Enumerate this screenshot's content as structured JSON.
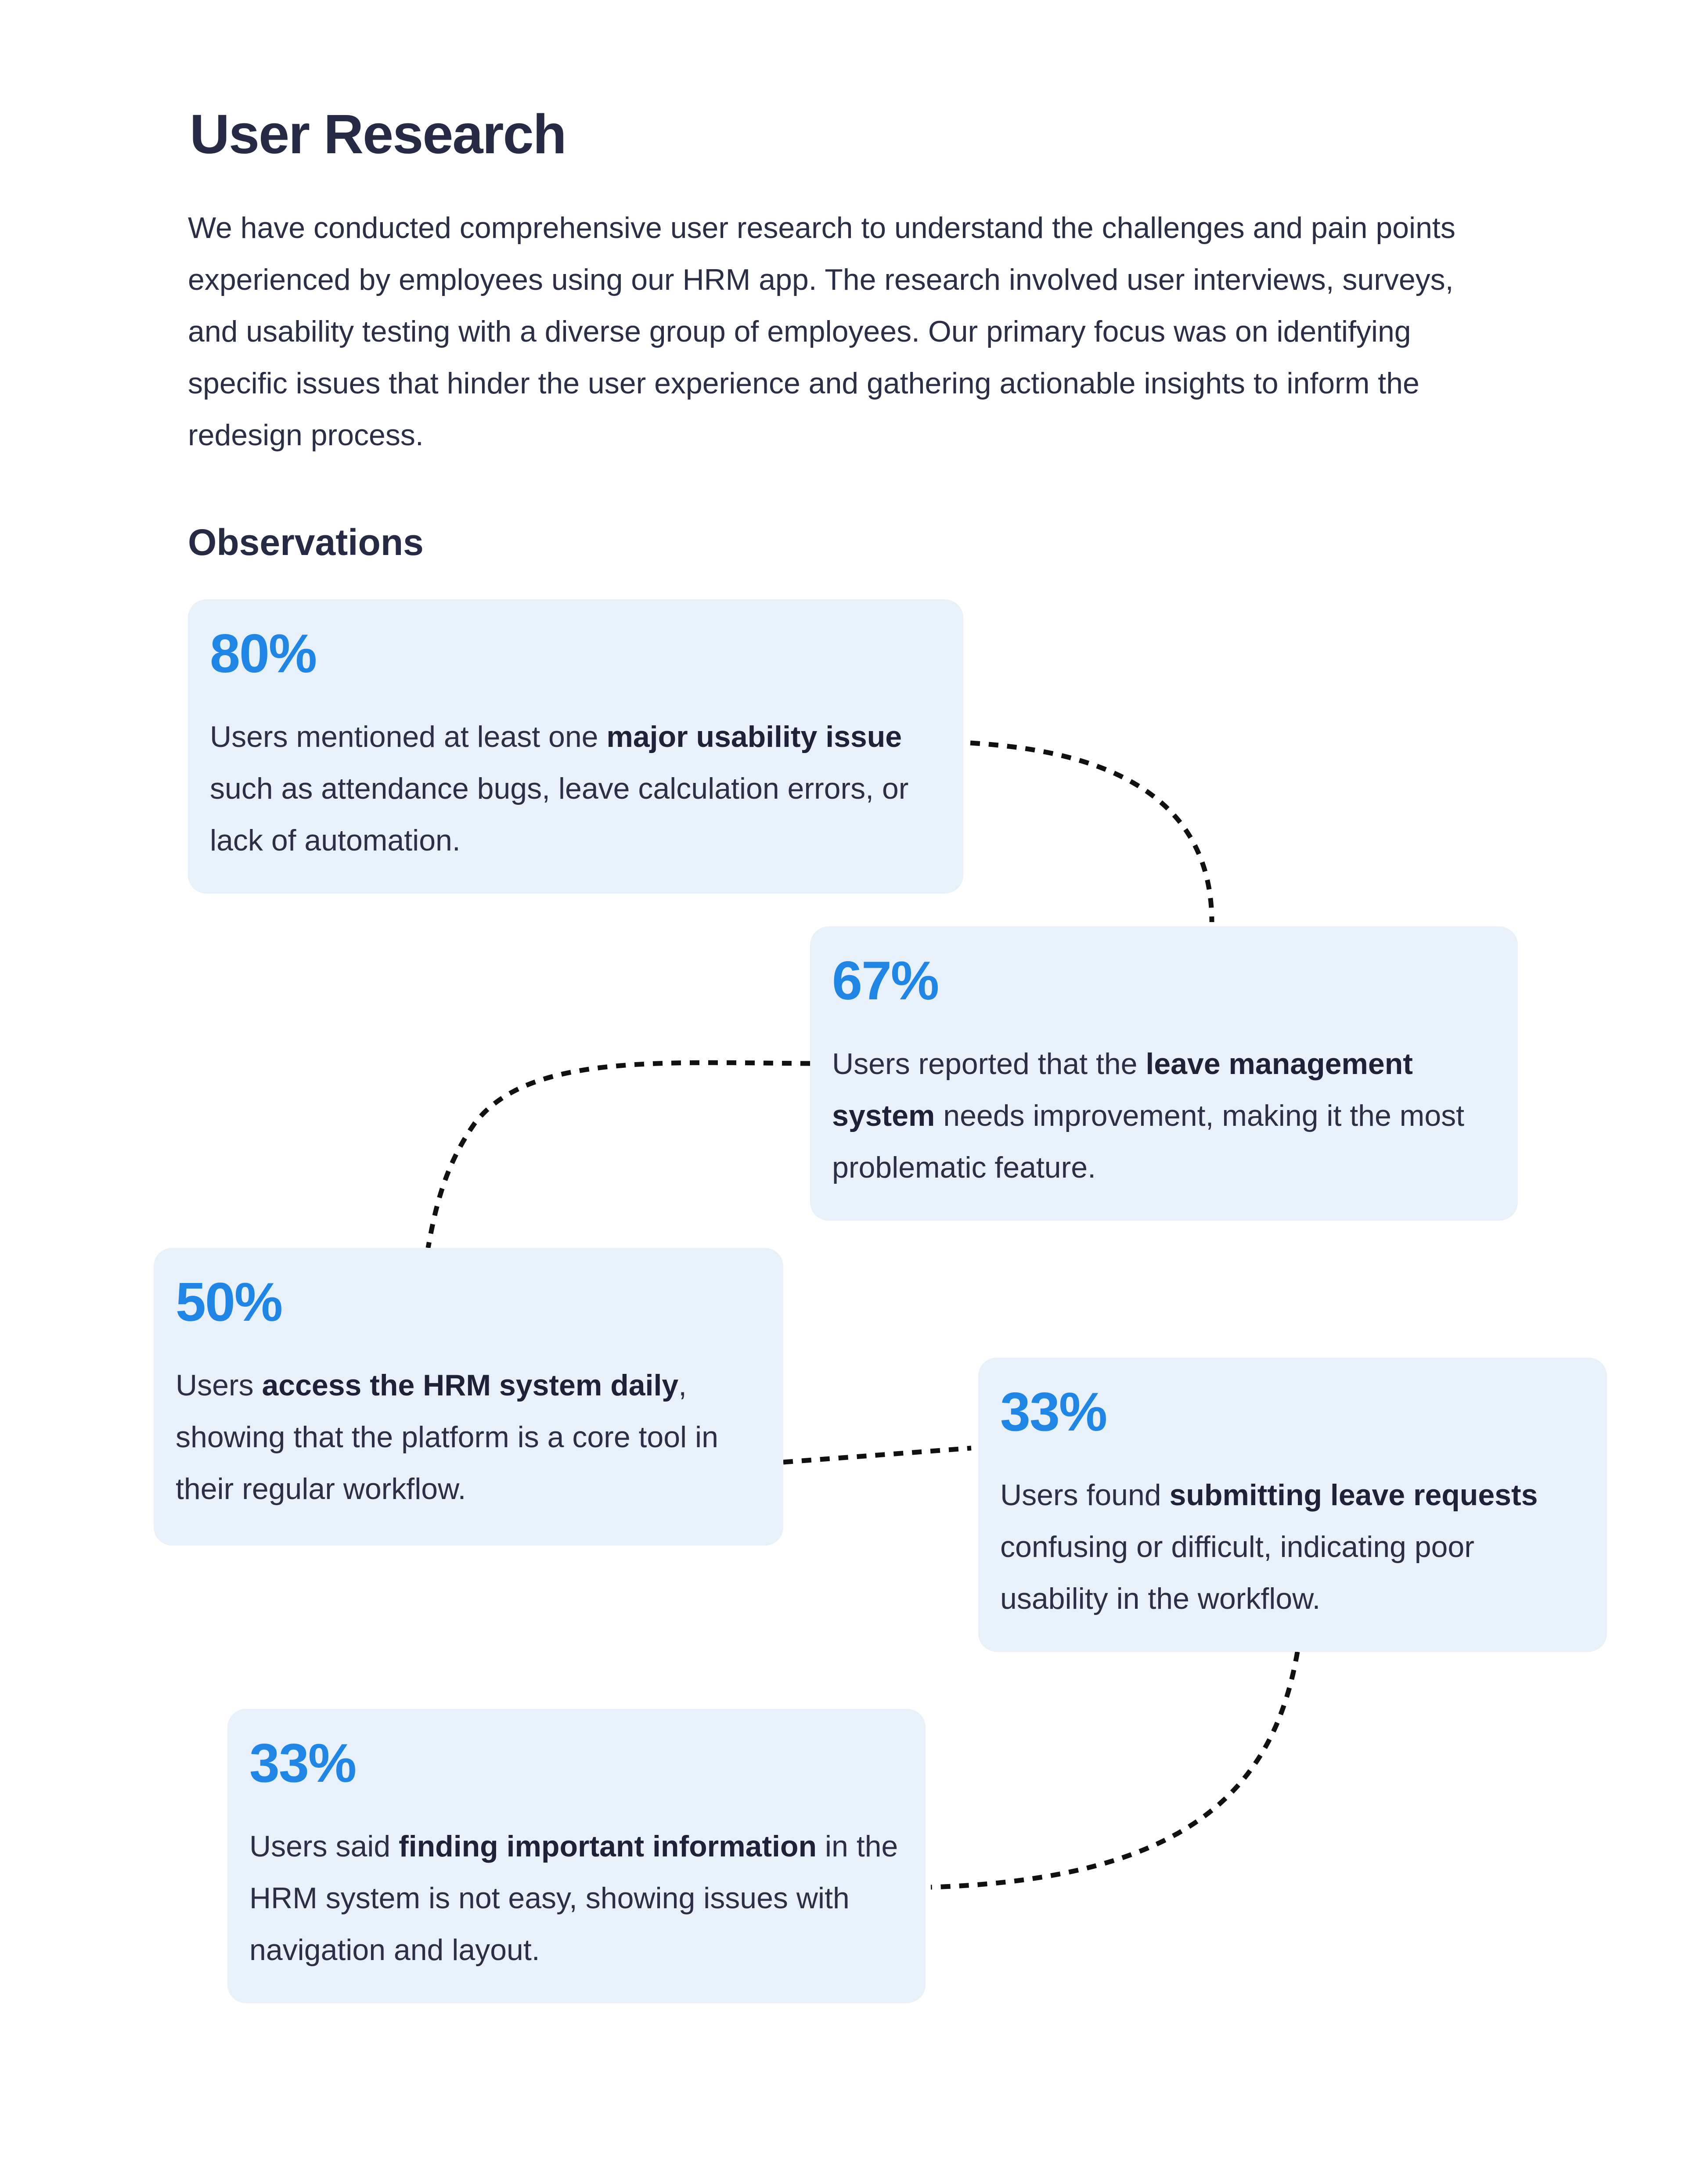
{
  "page": {
    "title": "User Research",
    "intro": "We have conducted comprehensive user research to understand the challenges and pain points experienced by employees using our HRM app. The research involved user interviews, surveys, and usability testing with a diverse group of employees. Our primary focus was on identifying specific issues that hinder the user experience and gathering actionable insights to inform the redesign process.",
    "observations_title": "Observations"
  },
  "observations": [
    {
      "stat": "80%",
      "text_before": "Users mentioned at least one ",
      "text_bold": "major usability issue",
      "text_after": " such as attendance bugs, leave calculation errors, or lack of automation."
    },
    {
      "stat": "67%",
      "text_before": "Users reported that the ",
      "text_bold": "leave management system",
      "text_after": " needs improvement, making it the most problematic feature."
    },
    {
      "stat": "50%",
      "text_before": "Users ",
      "text_bold": "access the HRM system daily",
      "text_after": ", showing that the platform is a core tool in their regular workflow."
    },
    {
      "stat": "33%",
      "text_before": "Users found ",
      "text_bold": "submitting leave requests",
      "text_after": " confusing or difficult, indicating poor usability in the workflow."
    },
    {
      "stat": "33%",
      "text_before": "Users said ",
      "text_bold": "finding important information",
      "text_after": " in the HRM system is not easy, showing issues with navigation and layout."
    }
  ],
  "colors": {
    "accent": "#1f86e6",
    "card_background": "#e8f0fa",
    "heading_text": "#272a44",
    "body_text": "#2b2e45",
    "connector": "#111111"
  }
}
